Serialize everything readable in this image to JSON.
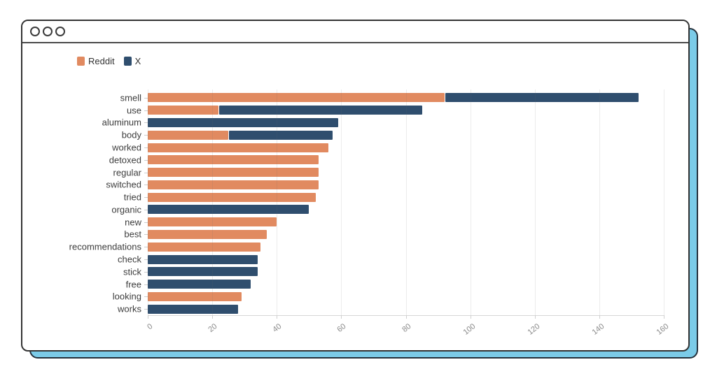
{
  "window": {
    "titlebar_button_count": 3,
    "colors": {
      "frame_border": "#333333",
      "shadow_fill": "#7BCBE8",
      "background": "#ffffff"
    }
  },
  "legend": [
    {
      "label": "Reddit",
      "color": "#E18A60"
    },
    {
      "label": "X",
      "color": "#2F4E6E"
    }
  ],
  "chart_data": {
    "type": "bar",
    "orientation": "horizontal",
    "stacked": true,
    "title": "",
    "xlabel": "",
    "ylabel": "",
    "grid": true,
    "legend_position": "top-left",
    "xlim": [
      0,
      160
    ],
    "xticks": [
      0,
      20,
      40,
      60,
      80,
      100,
      120,
      140,
      160
    ],
    "categories": [
      "smell",
      "use",
      "aluminum",
      "body",
      "worked",
      "detoxed",
      "regular",
      "switched",
      "tried",
      "organic",
      "new",
      "best",
      "recommendations",
      "check",
      "stick",
      "free",
      "looking",
      "works"
    ],
    "series": [
      {
        "name": "Reddit",
        "color": "#E18A60",
        "values": [
          92,
          22,
          0,
          25,
          56,
          53,
          53,
          53,
          52,
          0,
          40,
          37,
          35,
          0,
          0,
          0,
          29,
          0
        ]
      },
      {
        "name": "X",
        "color": "#2F4E6E",
        "values": [
          60,
          63,
          59,
          32,
          0,
          0,
          0,
          0,
          0,
          50,
          0,
          0,
          0,
          34,
          34,
          32,
          0,
          28
        ]
      }
    ]
  }
}
